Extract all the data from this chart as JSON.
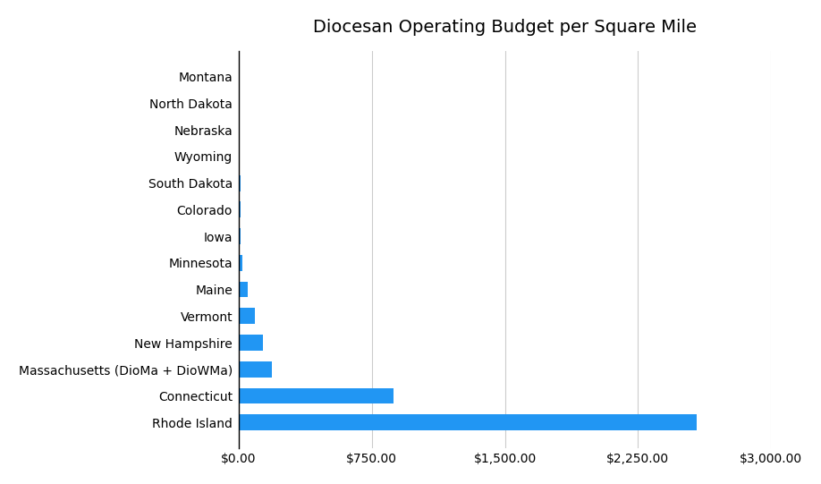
{
  "title": "Diocesan Operating Budget per Square Mile",
  "categories": [
    "Montana",
    "North Dakota",
    "Nebraska",
    "Wyoming",
    "South Dakota",
    "Colorado",
    "Iowa",
    "Minnesota",
    "Maine",
    "Vermont",
    "New Hampshire",
    "Massachusetts (DioMa + DioWMa)",
    "Connecticut",
    "Rhode Island"
  ],
  "values": [
    1.5,
    2.0,
    2.5,
    7,
    8,
    9,
    11,
    18,
    48,
    90,
    135,
    185,
    870,
    2580
  ],
  "bar_color": "#2196F3",
  "background_color": "#ffffff",
  "xlim": [
    0,
    3000
  ],
  "xtick_values": [
    0,
    750,
    1500,
    2250,
    3000
  ],
  "xtick_labels": [
    "$0.00",
    "$750.00",
    "$1,500.00",
    "$2,250.00",
    "$3,000.00"
  ],
  "title_fontsize": 14,
  "tick_fontsize": 10,
  "grid_color": "#cccccc"
}
